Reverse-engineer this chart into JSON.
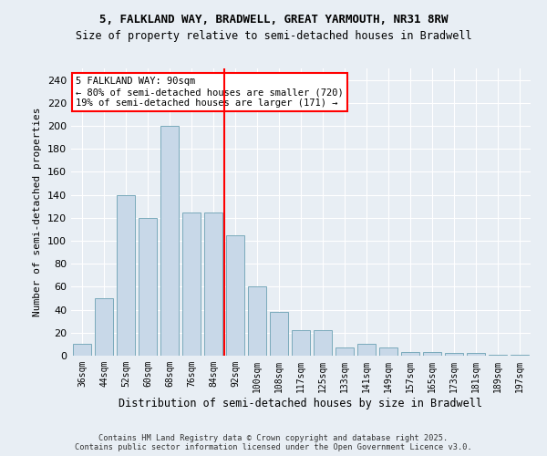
{
  "title_line1": "5, FALKLAND WAY, BRADWELL, GREAT YARMOUTH, NR31 8RW",
  "title_line2": "Size of property relative to semi-detached houses in Bradwell",
  "xlabel": "Distribution of semi-detached houses by size in Bradwell",
  "ylabel": "Number of semi-detached properties",
  "categories": [
    "36sqm",
    "44sqm",
    "52sqm",
    "60sqm",
    "68sqm",
    "76sqm",
    "84sqm",
    "92sqm",
    "100sqm",
    "108sqm",
    "117sqm",
    "125sqm",
    "133sqm",
    "141sqm",
    "149sqm",
    "157sqm",
    "165sqm",
    "173sqm",
    "181sqm",
    "189sqm",
    "197sqm"
  ],
  "values": [
    10,
    50,
    140,
    120,
    200,
    125,
    125,
    105,
    60,
    38,
    22,
    22,
    7,
    10,
    7,
    3,
    3,
    2,
    2,
    1,
    1
  ],
  "bar_color": "#c8d8e8",
  "bar_edge_color": "#7aaabb",
  "vline_color": "red",
  "annotation_text": "5 FALKLAND WAY: 90sqm\n← 80% of semi-detached houses are smaller (720)\n19% of semi-detached houses are larger (171) →",
  "annotation_box_color": "white",
  "annotation_box_edge_color": "red",
  "ylim": [
    0,
    250
  ],
  "yticks": [
    0,
    20,
    40,
    60,
    80,
    100,
    120,
    140,
    160,
    180,
    200,
    220,
    240
  ],
  "bg_color": "#e8eef4",
  "grid_color": "white",
  "footnote": "Contains HM Land Registry data © Crown copyright and database right 2025.\nContains public sector information licensed under the Open Government Licence v3.0."
}
